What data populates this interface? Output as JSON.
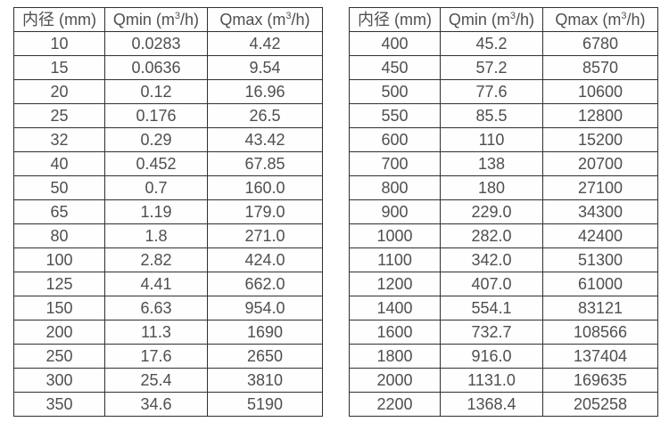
{
  "headers": {
    "diameter": "内径 (mm)",
    "qmin_prefix": "Qmin (m",
    "qmax_prefix": "Qmax (m",
    "cubed": "3",
    "unit_suffix": "/h)"
  },
  "colors": {
    "border": "#303030",
    "text": "#4f4f4f",
    "background": "#ffffff"
  },
  "tables": [
    {
      "name": "small-diameter-table",
      "rows": [
        [
          "10",
          "0.0283",
          "4.42"
        ],
        [
          "15",
          "0.0636",
          "9.54"
        ],
        [
          "20",
          "0.12",
          "16.96"
        ],
        [
          "25",
          "0.176",
          "26.5"
        ],
        [
          "32",
          "0.29",
          "43.42"
        ],
        [
          "40",
          "0.452",
          "67.85"
        ],
        [
          "50",
          "0.7",
          "160.0"
        ],
        [
          "65",
          "1.19",
          "179.0"
        ],
        [
          "80",
          "1.8",
          "271.0"
        ],
        [
          "100",
          "2.82",
          "424.0"
        ],
        [
          "125",
          "4.41",
          "662.0"
        ],
        [
          "150",
          "6.63",
          "954.0"
        ],
        [
          "200",
          "11.3",
          "1690"
        ],
        [
          "250",
          "17.6",
          "2650"
        ],
        [
          "300",
          "25.4",
          "3810"
        ],
        [
          "350",
          "34.6",
          "5190"
        ]
      ]
    },
    {
      "name": "large-diameter-table",
      "rows": [
        [
          "400",
          "45.2",
          "6780"
        ],
        [
          "450",
          "57.2",
          "8570"
        ],
        [
          "500",
          "77.6",
          "10600"
        ],
        [
          "550",
          "85.5",
          "12800"
        ],
        [
          "600",
          "110",
          "15200"
        ],
        [
          "700",
          "138",
          "20700"
        ],
        [
          "800",
          "180",
          "27100"
        ],
        [
          "900",
          "229.0",
          "34300"
        ],
        [
          "1000",
          "282.0",
          "42400"
        ],
        [
          "1100",
          "342.0",
          "51300"
        ],
        [
          "1200",
          "407.0",
          "61000"
        ],
        [
          "1400",
          "554.1",
          "83121"
        ],
        [
          "1600",
          "732.7",
          "108566"
        ],
        [
          "1800",
          "916.0",
          "137404"
        ],
        [
          "2000",
          "1131.0",
          "169635"
        ],
        [
          "2200",
          "1368.4",
          "205258"
        ]
      ]
    }
  ]
}
